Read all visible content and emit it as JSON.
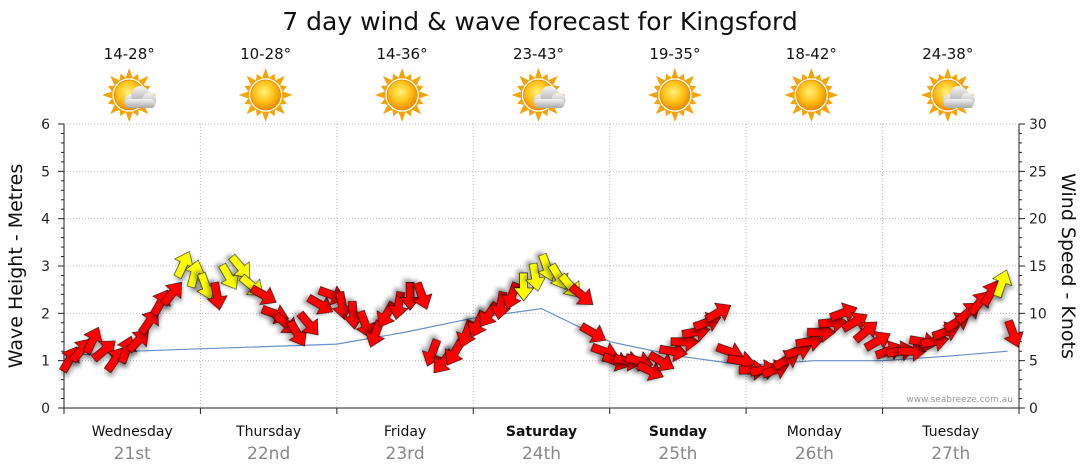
{
  "chart_data": {
    "type": "line",
    "title": "7 day wind & wave forecast for Kingsford",
    "ylabel_left": "Wave Height - Metres",
    "ylabel_right": "Wind Speed - Knots",
    "ylim_left": [
      0,
      6
    ],
    "ylim_right": [
      0,
      30
    ],
    "yticks_left": [
      "0",
      "1",
      "2",
      "3",
      "4",
      "5",
      "6"
    ],
    "yticks_right": [
      "0",
      "5",
      "10",
      "15",
      "20",
      "25",
      "30"
    ],
    "grid": true,
    "watermark": "www.seabreeze.com.au",
    "days": [
      {
        "name": "Wednesday",
        "date": "21st",
        "temp": "14-28°",
        "icon": "sun-cloud-icon",
        "bold": false
      },
      {
        "name": "Thursday",
        "date": "22nd",
        "temp": "10-28°",
        "icon": "sun-icon",
        "bold": false
      },
      {
        "name": "Friday",
        "date": "23rd",
        "temp": "14-36°",
        "icon": "sun-icon",
        "bold": false
      },
      {
        "name": "Saturday",
        "date": "24th",
        "temp": "23-43°",
        "icon": "sun-cloud-icon",
        "bold": true
      },
      {
        "name": "Sunday",
        "date": "25th",
        "temp": "19-35°",
        "icon": "sun-icon",
        "bold": true
      },
      {
        "name": "Monday",
        "date": "26th",
        "temp": "18-42°",
        "icon": "sun-icon",
        "bold": false
      },
      {
        "name": "Tuesday",
        "date": "27th",
        "temp": "24-38°",
        "icon": "sun-cloud-icon",
        "bold": false
      }
    ],
    "series": [
      {
        "name": "Wind Speed - Knots",
        "axis": "right",
        "x": [
          0,
          0.083,
          0.167,
          0.25,
          0.333,
          0.417,
          0.5,
          0.583,
          0.667,
          0.75,
          0.833,
          0.917,
          1,
          1.083,
          1.167,
          1.25,
          1.333,
          1.417,
          1.5,
          1.583,
          1.667,
          1.75,
          1.833,
          1.917,
          2,
          2.083,
          2.167,
          2.25,
          2.333,
          2.417,
          2.5,
          2.583,
          2.667,
          2.75,
          2.833,
          2.917,
          3,
          3.083,
          3.167,
          3.25,
          3.333,
          3.417,
          3.5,
          3.583,
          3.667,
          3.75,
          3.833,
          3.917,
          4,
          4.083,
          4.167,
          4.25,
          4.333,
          4.417,
          4.5,
          4.583,
          4.667,
          4.75,
          4.833,
          4.917,
          5,
          5.083,
          5.167,
          5.25,
          5.333,
          5.417,
          5.5,
          5.583,
          5.667,
          5.75,
          5.833,
          5.917,
          6,
          6.083,
          6.167,
          6.25,
          6.333,
          6.417,
          6.5,
          6.583,
          6.667,
          6.75,
          6.833,
          6.917
        ],
        "values": [
          5,
          6,
          7,
          6,
          5,
          6,
          7,
          9,
          11,
          12,
          15,
          14,
          13,
          12,
          14,
          15,
          13,
          12,
          10,
          9,
          8,
          9,
          11,
          12,
          11,
          10,
          9,
          8,
          10,
          11,
          12,
          12,
          6,
          5,
          6,
          8,
          9,
          10,
          11,
          12,
          13,
          14,
          15,
          14,
          13,
          12,
          8,
          6,
          5,
          5,
          5,
          4,
          5,
          6,
          7,
          8,
          9,
          10,
          6,
          5,
          4,
          4,
          4,
          5,
          6,
          7,
          8,
          9,
          10,
          9,
          8,
          7,
          6,
          6,
          6,
          7,
          7,
          8,
          9,
          10,
          11,
          12,
          13,
          8
        ]
      },
      {
        "name": "Wave Height - Metres",
        "axis": "left",
        "x": [
          0,
          0.5,
          1,
          1.5,
          2,
          2.5,
          3,
          3.5,
          4,
          4.5,
          5,
          5.5,
          6,
          6.5,
          6.917
        ],
        "values": [
          1.1,
          1.2,
          1.25,
          1.3,
          1.35,
          1.6,
          1.9,
          2.1,
          1.4,
          1.1,
          0.9,
          1.0,
          1.0,
          1.1,
          1.2
        ]
      }
    ]
  }
}
